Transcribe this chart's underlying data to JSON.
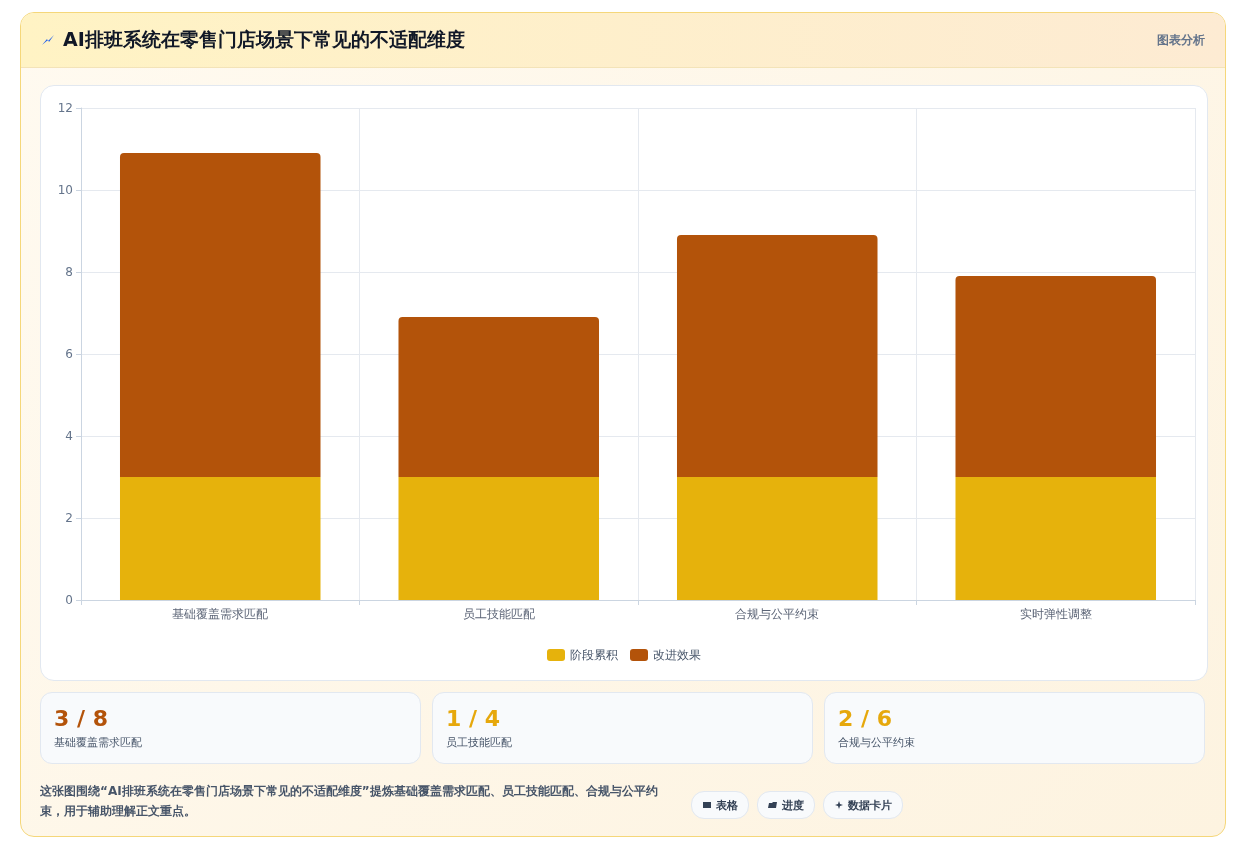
{
  "chart_data": {
    "type": "bar",
    "title": "AI排班系统在零售门店场景下常见的不适配维度",
    "categories": [
      "基础覆盖需求匹配",
      "员工技能匹配",
      "合规与公平约束",
      "实时弹性调整"
    ],
    "series": [
      {
        "name": "阶段累积",
        "color": "#e6b20c",
        "values": [
          3,
          3,
          3,
          3
        ]
      },
      {
        "name": "改进效果",
        "color": "#b3530a",
        "values": [
          7.9,
          3.9,
          5.9,
          4.9
        ]
      }
    ],
    "stacked": true,
    "ylim": [
      0,
      12
    ],
    "yticks": [
      0,
      2,
      4,
      6,
      8,
      10,
      12
    ],
    "grid": true,
    "legend": "bottom",
    "annotations": [
      "图表分析",
      "3 / 8",
      "基础覆盖需求匹配",
      "1 / 4",
      "员工技能匹配",
      "2 / 6",
      "合规与公平约束",
      "这张图围绕“AI排班系统在零售门店场景下常见的不适配维度”提炼基础覆盖需求匹配、员工技能匹配、合规与公平约束，用于辅助理解正文重点。",
      "表格",
      "进度",
      "数据卡片"
    ]
  }
}
